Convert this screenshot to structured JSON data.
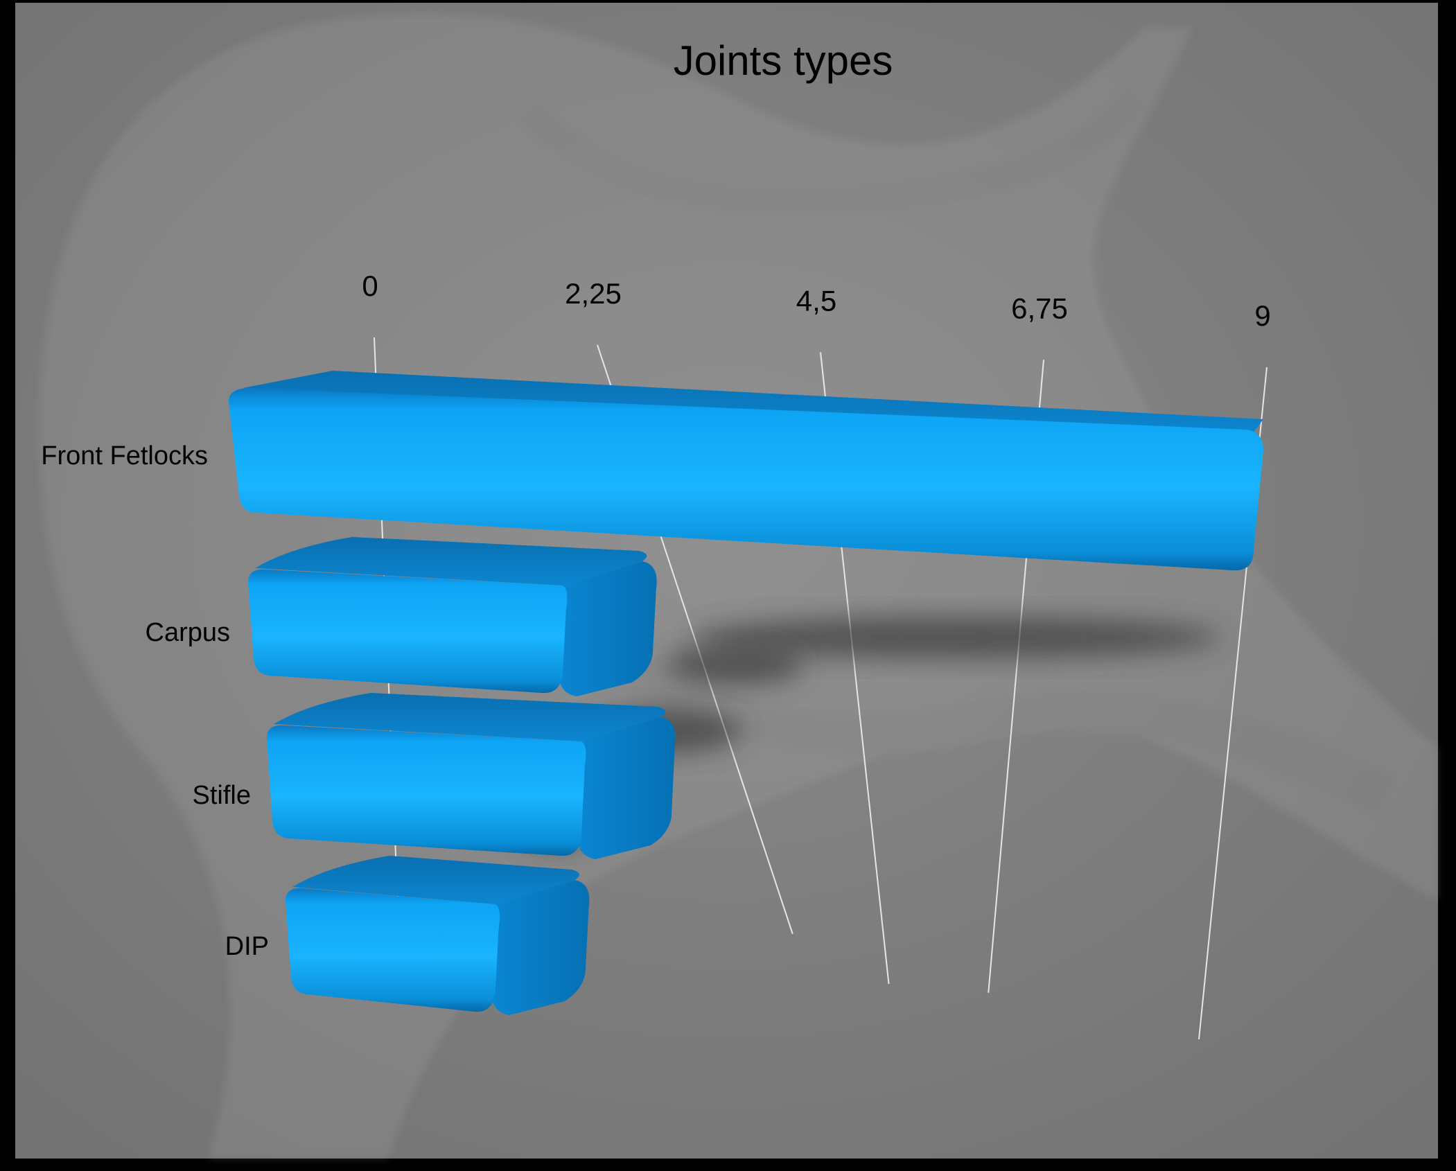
{
  "chart_data": {
    "type": "bar",
    "orientation": "horizontal",
    "title": "Joints types",
    "xlabel": "",
    "ylabel": "",
    "categories": [
      "Front Fetlocks",
      "Carpus",
      "Stifle",
      "DIP"
    ],
    "values": [
      9,
      1.5,
      1.5,
      1
    ],
    "xlim": [
      0,
      9
    ],
    "x_ticks": [
      "0",
      "2,25",
      "4,5",
      "6,75",
      "9"
    ],
    "x_tick_values": [
      0,
      2.25,
      4.5,
      6.75,
      9
    ],
    "grid": true,
    "legend": "none",
    "style": "3d",
    "colors": {
      "bar": "#0a9cf0",
      "bar_dark": "#0670b4",
      "bar_light": "#3cc0ff",
      "background": "#7d7d7d",
      "frame": "#000000",
      "gridline": "#e6e6e6",
      "text": "#000000"
    }
  }
}
